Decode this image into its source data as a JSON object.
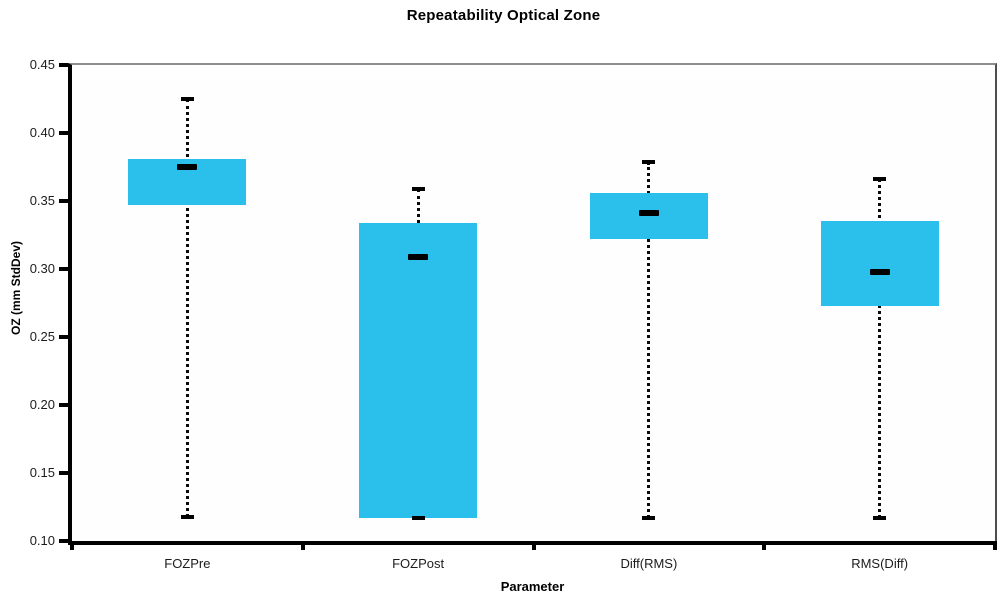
{
  "chart_data": {
    "type": "boxplot",
    "title": "Repeatability Optical Zone",
    "xlabel": "Parameter",
    "ylabel": "OZ (mm StdDev)",
    "ylim": [
      0.1,
      0.45
    ],
    "yticks": [
      0.45,
      0.4,
      0.35,
      0.3,
      0.25,
      0.2,
      0.15,
      0.1
    ],
    "categories": [
      "FOZPre",
      "FOZPost",
      "Diff(RMS)",
      "RMS(Diff)"
    ],
    "boxes": [
      {
        "label": "FOZPre",
        "whisker_low": 0.118,
        "q1": 0.347,
        "median": 0.375,
        "q3": 0.381,
        "whisker_high": 0.425
      },
      {
        "label": "FOZPost",
        "whisker_low": 0.117,
        "q1": 0.117,
        "median": 0.309,
        "q3": 0.334,
        "whisker_high": 0.359
      },
      {
        "label": "Diff(RMS)",
        "whisker_low": 0.117,
        "q1": 0.322,
        "median": 0.341,
        "q3": 0.356,
        "whisker_high": 0.379
      },
      {
        "label": "RMS(Diff)",
        "whisker_low": 0.117,
        "q1": 0.273,
        "median": 0.298,
        "q3": 0.335,
        "whisker_high": 0.366
      }
    ],
    "legend": "none",
    "grid": "off",
    "colors": {
      "box_fill": "#2bbfec",
      "line": "#000000",
      "plot_border_top": "#8e8e8e",
      "plot_border_right": "#4d4d4d",
      "background": "#ffffff"
    }
  }
}
